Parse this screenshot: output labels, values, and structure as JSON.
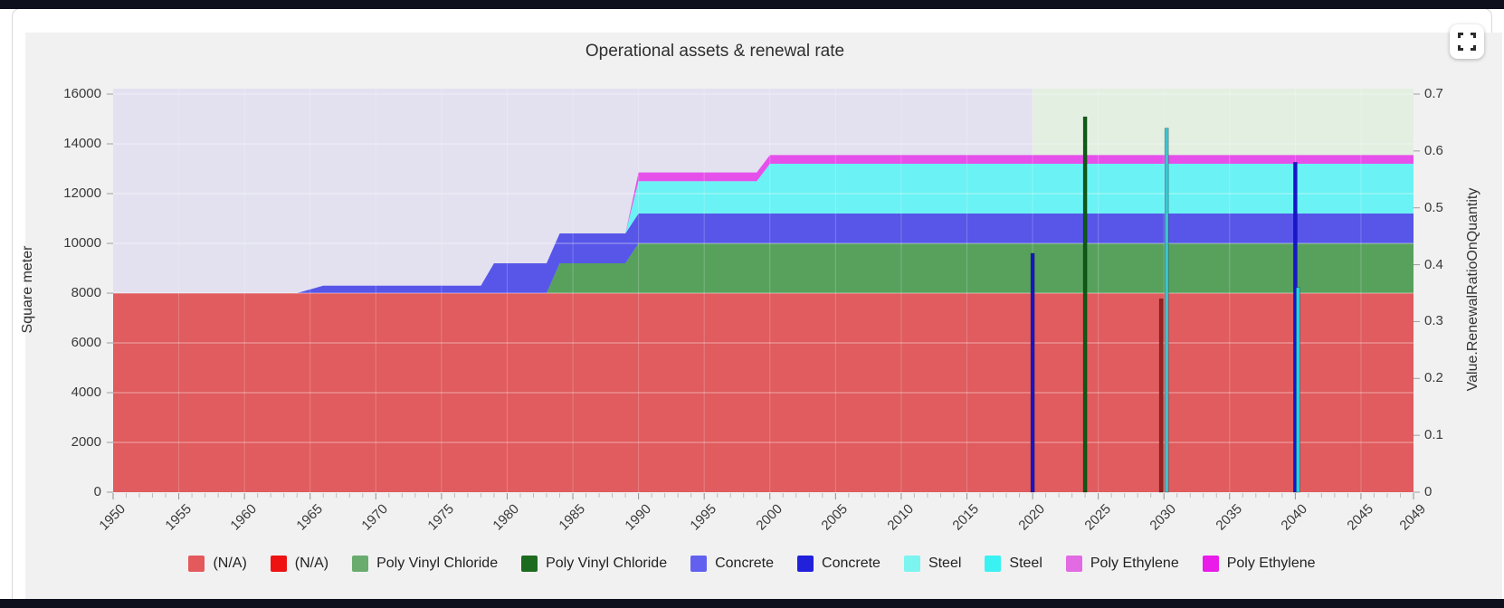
{
  "card": {
    "fullscreen_tooltip": "Toggle fullscreen"
  },
  "chart_data": {
    "type": "area",
    "title": "Operational assets & renewal rate",
    "x_axis": {
      "min": 1950,
      "max": 2049,
      "ticks": [
        1950,
        1955,
        1960,
        1965,
        1970,
        1975,
        1980,
        1985,
        1990,
        1995,
        2000,
        2005,
        2010,
        2015,
        2020,
        2025,
        2030,
        2035,
        2040,
        2045,
        2049
      ]
    },
    "y_left": {
      "label": "Square meter",
      "min": 0,
      "max": 16000,
      "ticks": [
        0,
        2000,
        4000,
        6000,
        8000,
        10000,
        12000,
        14000,
        16000
      ]
    },
    "y_right": {
      "label": "Value.RenewalRatioOnQuantity",
      "min": 0,
      "max": 0.7,
      "ticks": [
        0,
        0.1,
        0.2,
        0.3,
        0.4,
        0.5,
        0.6,
        0.7
      ]
    },
    "regions": [
      {
        "name": "history",
        "from": 1950,
        "to": 2020,
        "color": "#e3e1f0"
      },
      {
        "name": "forecast",
        "from": 2020,
        "to": 2049,
        "color": "#e3efe1"
      }
    ],
    "area_series": [
      {
        "name": "(N/A)",
        "color": "#e05c5e",
        "points": [
          [
            1950,
            8000
          ],
          [
            2049,
            8000
          ]
        ]
      },
      {
        "name": "Poly Vinyl Chloride",
        "color": "#57a15d",
        "points": [
          [
            1950,
            0
          ],
          [
            1983,
            0
          ],
          [
            1984,
            1200
          ],
          [
            1989,
            1200
          ],
          [
            1990,
            2000
          ],
          [
            2049,
            2000
          ]
        ]
      },
      {
        "name": "Concrete",
        "color": "#5756e9",
        "points": [
          [
            1950,
            0
          ],
          [
            1964,
            0
          ],
          [
            1966,
            300
          ],
          [
            1978,
            300
          ],
          [
            1979,
            1200
          ],
          [
            2049,
            1200
          ]
        ]
      },
      {
        "name": "Steel",
        "color": "#6bf2f4",
        "points": [
          [
            1950,
            0
          ],
          [
            1989,
            0
          ],
          [
            1990,
            1300
          ],
          [
            1999,
            1300
          ],
          [
            2000,
            2000
          ],
          [
            2049,
            2000
          ]
        ]
      },
      {
        "name": "Poly Ethylene",
        "color": "#e650ea",
        "points": [
          [
            1950,
            0
          ],
          [
            1989,
            0
          ],
          [
            1990,
            350
          ],
          [
            2049,
            350
          ]
        ]
      }
    ],
    "renewal_bars": [
      {
        "year": 2020,
        "series": "Concrete",
        "value": 0.42,
        "color": "#1716c9",
        "dx": 0
      },
      {
        "year": 2024,
        "series": "Poly Vinyl Chloride",
        "value": 0.66,
        "color": "#0d5a14",
        "dx": 0
      },
      {
        "year": 2030,
        "series": "(N/A)",
        "value": 0.34,
        "color": "#942222",
        "dx": -3
      },
      {
        "year": 2030,
        "series": "Steel",
        "value": 0.64,
        "color": "#3cc5d2",
        "dx": 3
      },
      {
        "year": 2040,
        "series": "Concrete",
        "value": 0.58,
        "color": "#1716c9",
        "dx": 0
      },
      {
        "year": 2040,
        "series": "Steel",
        "value": 0.36,
        "color": "#2ccfe2",
        "dx": 3
      }
    ],
    "legend": [
      {
        "label": "(N/A)",
        "color": "#e4595c"
      },
      {
        "label": "(N/A)",
        "color": "#ee1212"
      },
      {
        "label": "Poly Vinyl Chloride",
        "color": "#6aab6e"
      },
      {
        "label": "Poly Vinyl Chloride",
        "color": "#1d6b1f"
      },
      {
        "label": "Concrete",
        "color": "#6261ef"
      },
      {
        "label": "Concrete",
        "color": "#2121dc"
      },
      {
        "label": "Steel",
        "color": "#7cf4ef"
      },
      {
        "label": "Steel",
        "color": "#3af2f2"
      },
      {
        "label": "Poly Ethylene",
        "color": "#e26ae2"
      },
      {
        "label": "Poly Ethylene",
        "color": "#e91ce9"
      }
    ]
  }
}
